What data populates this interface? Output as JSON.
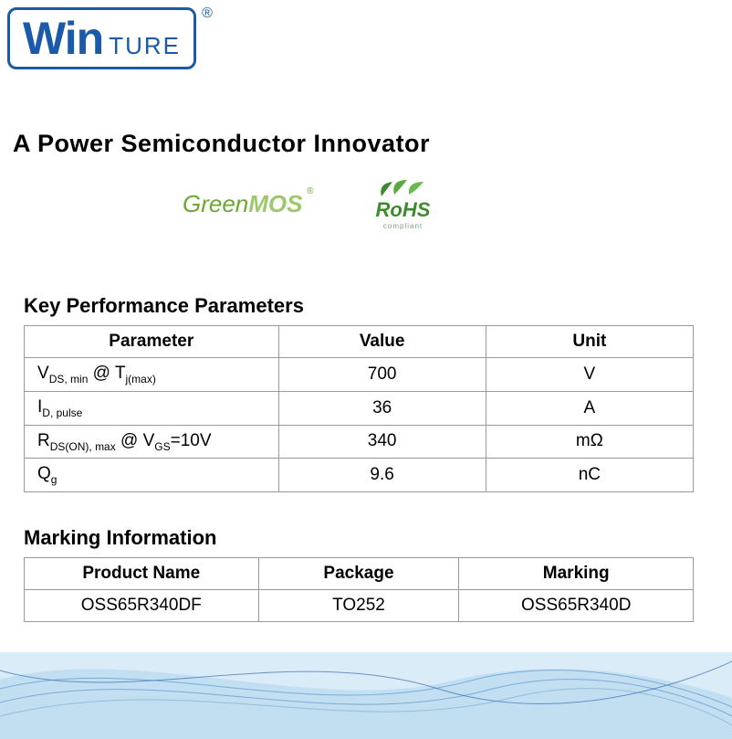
{
  "logo": {
    "first": "Win",
    "second": "TURE",
    "registered": "®",
    "border_color": "#1a5aa8",
    "text_color": "#1a5aa8"
  },
  "tagline": "A Power Semiconductor Innovator",
  "badges": {
    "greenmos_green": "Green",
    "greenmos_mos": "MOS",
    "greenmos_r": "®",
    "greenmos_color_a": "#6aa82f",
    "greenmos_color_b": "#9ec96a",
    "rohs_text": "RoHS",
    "rohs_sub": "compliant",
    "rohs_color": "#3e8b2f"
  },
  "kpp": {
    "title": "Key Performance Parameters",
    "columns": [
      "Parameter",
      "Value",
      "Unit"
    ],
    "col_widths": [
      "38%",
      "31%",
      "31%"
    ],
    "rows": [
      {
        "param_html": "V<sub>DS, min</sub> @ T<sub>j(max)</sub>",
        "value": "700",
        "unit": "V"
      },
      {
        "param_html": "I<sub>D, pulse</sub>",
        "value": "36",
        "unit": "A"
      },
      {
        "param_html": "R<sub>DS(ON), max</sub> @ V<sub>GS</sub>=10V",
        "value": "340",
        "unit": "mΩ"
      },
      {
        "param_html": "Q<sub>g</sub>",
        "value": "9.6",
        "unit": "nC"
      }
    ]
  },
  "marking": {
    "title": "Marking Information",
    "columns": [
      "Product Name",
      "Package",
      "Marking"
    ],
    "col_widths": [
      "35%",
      "30%",
      "35%"
    ],
    "rows": [
      {
        "product": "OSS65R340DF",
        "package": "TO252",
        "marking": "OSS65R340D"
      }
    ]
  },
  "footer": {
    "bg_color": "#d9ecf7",
    "line_color": "#1a5aa8",
    "line_color_2": "#4a8ac2"
  },
  "table_style": {
    "border_color": "#999999",
    "header_fontweight": 700,
    "cell_fontsize": 19
  }
}
